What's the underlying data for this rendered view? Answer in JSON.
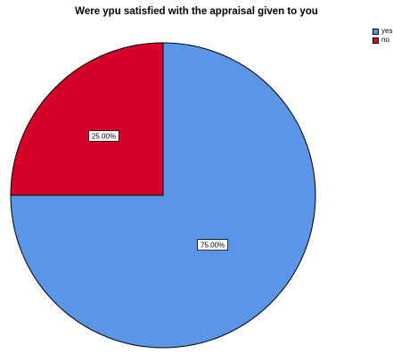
{
  "chart_data": {
    "type": "pie",
    "title": "Were ypu satisfied with the appraisal given to you",
    "categories": [
      "yes",
      "no"
    ],
    "values": [
      75.0,
      25.0
    ],
    "data_labels": [
      "75.00%",
      "25.00%"
    ],
    "colors": [
      "#5B95E5",
      "#D5012A"
    ],
    "legend_position": "top-right",
    "start_angle": "12 o'clock",
    "direction": "clockwise"
  }
}
